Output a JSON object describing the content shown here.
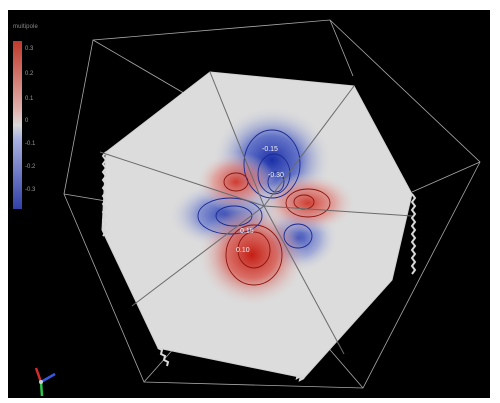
{
  "legend": {
    "title": "multipole",
    "ticks": [
      "0.3",
      "0.2",
      "0.1",
      "0",
      "-0.1",
      "-0.2",
      "-0.3"
    ],
    "colors": {
      "positive": "#c0392b",
      "neutral": "#d9d9d9",
      "negative": "#3040a8"
    }
  },
  "contour_labels": [
    "-0.15",
    "-0.30",
    "0.15",
    "0.10"
  ],
  "scene": {
    "background": "#000000",
    "surface_color": "#dcdcdc",
    "edge_color": "#cfcfcf"
  },
  "axes_icon": "xyz-orientation-triad-icon"
}
